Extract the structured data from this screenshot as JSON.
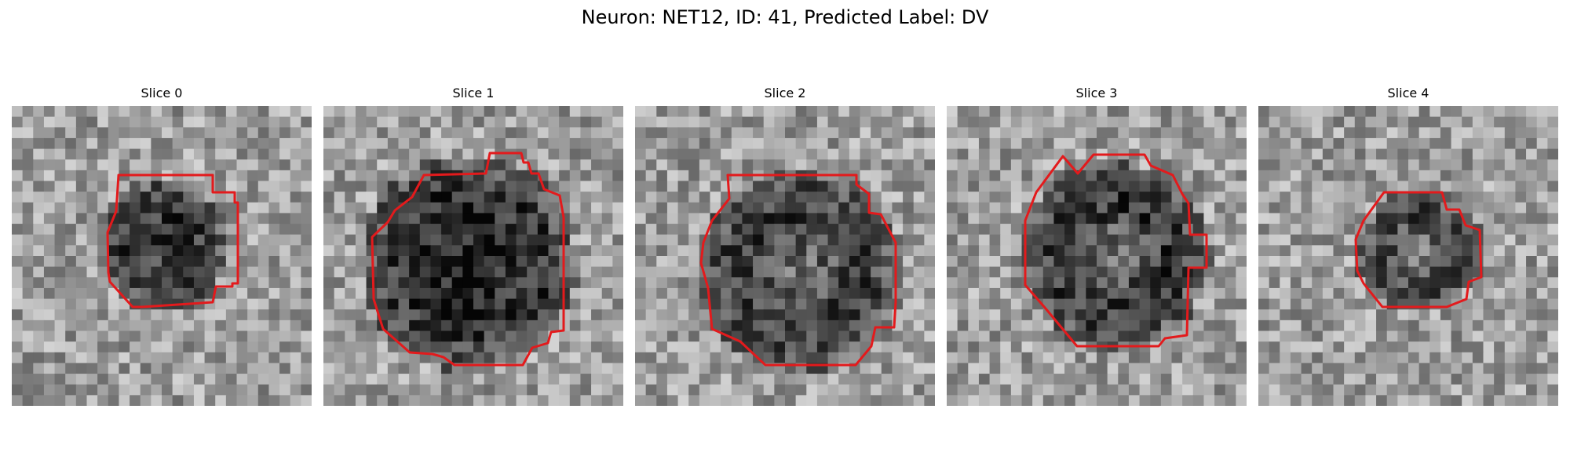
{
  "figure": {
    "title": "Neuron: NET12, ID: 41, Predicted Label: DV"
  },
  "panels": [
    {
      "title": "Slice 0",
      "image_name": "slice-0-image"
    },
    {
      "title": "Slice 1",
      "image_name": "slice-1-image"
    },
    {
      "title": "Slice 2",
      "image_name": "slice-2-image"
    },
    {
      "title": "Slice 3",
      "image_name": "slice-3-image"
    },
    {
      "title": "Slice 4",
      "image_name": "slice-4-image"
    }
  ],
  "colors": {
    "contour": "#e31a1c"
  }
}
